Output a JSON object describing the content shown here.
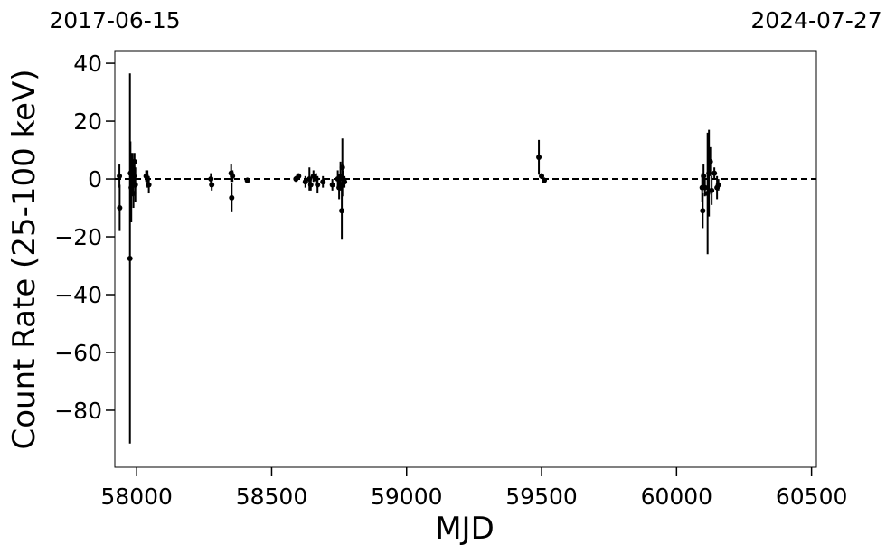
{
  "chart_data": {
    "type": "errorbar",
    "xlabel": "MJD",
    "ylabel": "Count Rate (25-100 keV)",
    "xlim": [
      57919,
      60518
    ],
    "ylim": [
      -99.7,
      44.4
    ],
    "xticks": [
      58000,
      58500,
      59000,
      59500,
      60000,
      60500
    ],
    "yticks": [
      {
        "value": -80,
        "label": "−80"
      },
      {
        "value": -60,
        "label": "−60"
      },
      {
        "value": -40,
        "label": "−40"
      },
      {
        "value": -20,
        "label": "−20"
      },
      0,
      20,
      40
    ],
    "x2ticks": [
      {
        "value": 57919,
        "label": "2017-06-15"
      },
      {
        "value": 60518,
        "label": "2024-07-27"
      }
    ],
    "reference_line": 0,
    "color": "#000000",
    "x": [
      57936,
      57937,
      57975,
      57977,
      57980,
      57983,
      57985,
      57988,
      57990,
      57992,
      57995,
      58035,
      58040,
      58045,
      58275,
      58278,
      58350,
      58352,
      58355,
      58410,
      58590,
      58600,
      58625,
      58640,
      58645,
      58655,
      58665,
      58670,
      58690,
      58725,
      58745,
      58750,
      58755,
      58760,
      58762,
      58765,
      58770,
      59490,
      59500,
      59510,
      60095,
      60097,
      60100,
      60105,
      60115,
      60120,
      60125,
      60130,
      60140,
      60150,
      60155
    ],
    "values": [
      1,
      -10,
      -27.5,
      2,
      -3,
      0,
      4,
      -5,
      1,
      6,
      -2,
      1,
      0,
      -2,
      0,
      -2,
      2,
      -6.5,
      1,
      -0.5,
      0,
      1,
      -1,
      0,
      -2,
      1,
      0,
      -2,
      -1,
      -2,
      0,
      -3,
      1,
      -11,
      4,
      0,
      -1,
      7.5,
      1,
      -0.5,
      -3,
      -11,
      1,
      -3,
      -5,
      2,
      6,
      -4,
      2,
      -3,
      -2
    ],
    "errors": [
      4,
      8,
      64,
      11,
      12,
      6,
      5,
      5,
      4,
      3,
      6,
      2,
      3,
      3,
      2,
      2,
      3,
      5,
      2,
      1,
      1,
      1,
      2,
      4,
      2,
      2,
      2,
      3,
      2,
      2,
      3,
      4,
      5,
      10,
      10,
      3,
      2,
      6,
      1,
      1,
      5,
      6,
      4,
      3,
      21,
      15,
      5,
      5,
      2,
      4,
      2
    ]
  }
}
